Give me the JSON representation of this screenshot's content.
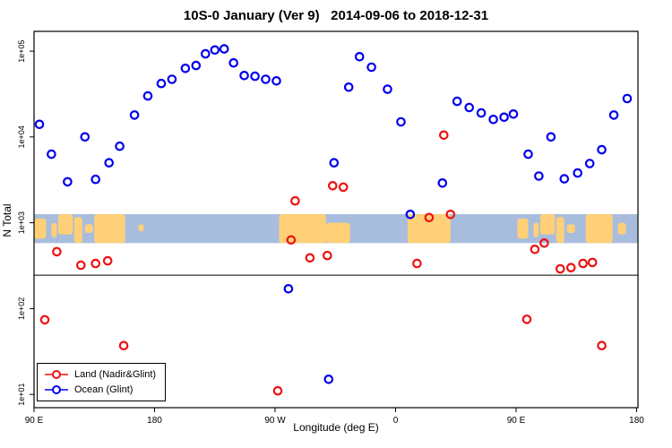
{
  "title": "10S-0 January (Ver 9)   2014-09-06 to 2018-12-31",
  "chart_data": {
    "type": "scatter",
    "title": "10S-0 January (Ver 9)   2014-09-06 to 2018-12-31",
    "xlabel": "Longitude (deg E)",
    "ylabel": "N Total",
    "y_scale": "log",
    "xlim": [
      0,
      451
    ],
    "ylim": [
      7,
      170000
    ],
    "x_ticks": {
      "positions": [
        0,
        90,
        180,
        270,
        360,
        450
      ],
      "labels": [
        "90 E",
        "180",
        "90 W",
        "0",
        "90 E",
        "180"
      ]
    },
    "y_ticks": {
      "values": [
        10,
        100,
        1000,
        10000,
        100000
      ],
      "labels": [
        "1e+01",
        "1e+02",
        "1e+03",
        "1e+04",
        "1e+05"
      ]
    },
    "grid": false,
    "ref_line_value": 245,
    "map_band": {
      "top_value": 1260,
      "bottom_value": 580,
      "ocean_color": "#a8bdde",
      "land_color": "#ffd077",
      "land_blobs": [
        {
          "x0": 0,
          "x1": 9,
          "top": 0.15,
          "bot": 0.85
        },
        {
          "x0": 13,
          "x1": 17,
          "top": 0.3,
          "bot": 0.8
        },
        {
          "x0": 18,
          "x1": 29,
          "top": 0.0,
          "bot": 0.7
        },
        {
          "x0": 30,
          "x1": 36,
          "top": 0.1,
          "bot": 1.0
        },
        {
          "x0": 38,
          "x1": 44,
          "top": 0.35,
          "bot": 0.65
        },
        {
          "x0": 45,
          "x1": 68,
          "top": 0.0,
          "bot": 1.0
        },
        {
          "x0": 78,
          "x1": 82,
          "top": 0.35,
          "bot": 0.6
        },
        {
          "x0": 183,
          "x1": 218,
          "top": 0.0,
          "bot": 1.0
        },
        {
          "x0": 218,
          "x1": 236,
          "top": 0.3,
          "bot": 1.0
        },
        {
          "x0": 279,
          "x1": 311,
          "top": 0.0,
          "bot": 1.0
        },
        {
          "x0": 361,
          "x1": 369,
          "top": 0.15,
          "bot": 0.85
        },
        {
          "x0": 373,
          "x1": 377,
          "top": 0.3,
          "bot": 0.8
        },
        {
          "x0": 378,
          "x1": 389,
          "top": 0.0,
          "bot": 0.7
        },
        {
          "x0": 390,
          "x1": 396,
          "top": 0.1,
          "bot": 1.0
        },
        {
          "x0": 398,
          "x1": 404,
          "top": 0.35,
          "bot": 0.65
        },
        {
          "x0": 412,
          "x1": 432,
          "top": 0.0,
          "bot": 1.0
        },
        {
          "x0": 436,
          "x1": 442,
          "top": 0.3,
          "bot": 0.7
        }
      ]
    },
    "legend": {
      "position": "bottom-left"
    },
    "series": [
      {
        "name": "Land (Nadir&Glint)",
        "color": "#ee1111",
        "points": [
          [
            8,
            74
          ],
          [
            17,
            460
          ],
          [
            35,
            320
          ],
          [
            46,
            335
          ],
          [
            55,
            360
          ],
          [
            67,
            37
          ],
          [
            182,
            11
          ],
          [
            192,
            630
          ],
          [
            195,
            1800
          ],
          [
            206,
            390
          ],
          [
            219,
            415
          ],
          [
            223,
            2700
          ],
          [
            231,
            2600
          ],
          [
            286,
            335
          ],
          [
            295,
            1150
          ],
          [
            306,
            10500
          ],
          [
            311,
            1250
          ],
          [
            368,
            75
          ],
          [
            374,
            490
          ],
          [
            381,
            580
          ],
          [
            393,
            290
          ],
          [
            401,
            300
          ],
          [
            410,
            335
          ],
          [
            417,
            345
          ],
          [
            424,
            37
          ]
        ]
      },
      {
        "name": "Ocean (Glint)",
        "color": "#0000ee",
        "points": [
          [
            4,
            14000
          ],
          [
            13,
            6300
          ],
          [
            25,
            3000
          ],
          [
            38,
            10000
          ],
          [
            46,
            3200
          ],
          [
            56,
            5000
          ],
          [
            64,
            7800
          ],
          [
            75,
            18000
          ],
          [
            85,
            30000
          ],
          [
            95,
            42000
          ],
          [
            103,
            47000
          ],
          [
            113,
            63000
          ],
          [
            121,
            68000
          ],
          [
            128,
            93000
          ],
          [
            135,
            103000
          ],
          [
            142,
            106000
          ],
          [
            149,
            73000
          ],
          [
            157,
            52000
          ],
          [
            165,
            51000
          ],
          [
            173,
            47000
          ],
          [
            181,
            45000
          ],
          [
            190,
            170
          ],
          [
            220,
            15
          ],
          [
            224,
            5000
          ],
          [
            235,
            38000
          ],
          [
            243,
            86000
          ],
          [
            252,
            65000
          ],
          [
            264,
            36000
          ],
          [
            274,
            15000
          ],
          [
            281,
            1250
          ],
          [
            305,
            2900
          ],
          [
            316,
            26000
          ],
          [
            325,
            22000
          ],
          [
            334,
            19000
          ],
          [
            343,
            16000
          ],
          [
            351,
            17000
          ],
          [
            358,
            18500
          ],
          [
            369,
            6300
          ],
          [
            377,
            3500
          ],
          [
            386,
            10000
          ],
          [
            396,
            3250
          ],
          [
            406,
            3800
          ],
          [
            415,
            4900
          ],
          [
            424,
            7100
          ],
          [
            433,
            18000
          ],
          [
            443,
            28000
          ]
        ]
      }
    ]
  }
}
